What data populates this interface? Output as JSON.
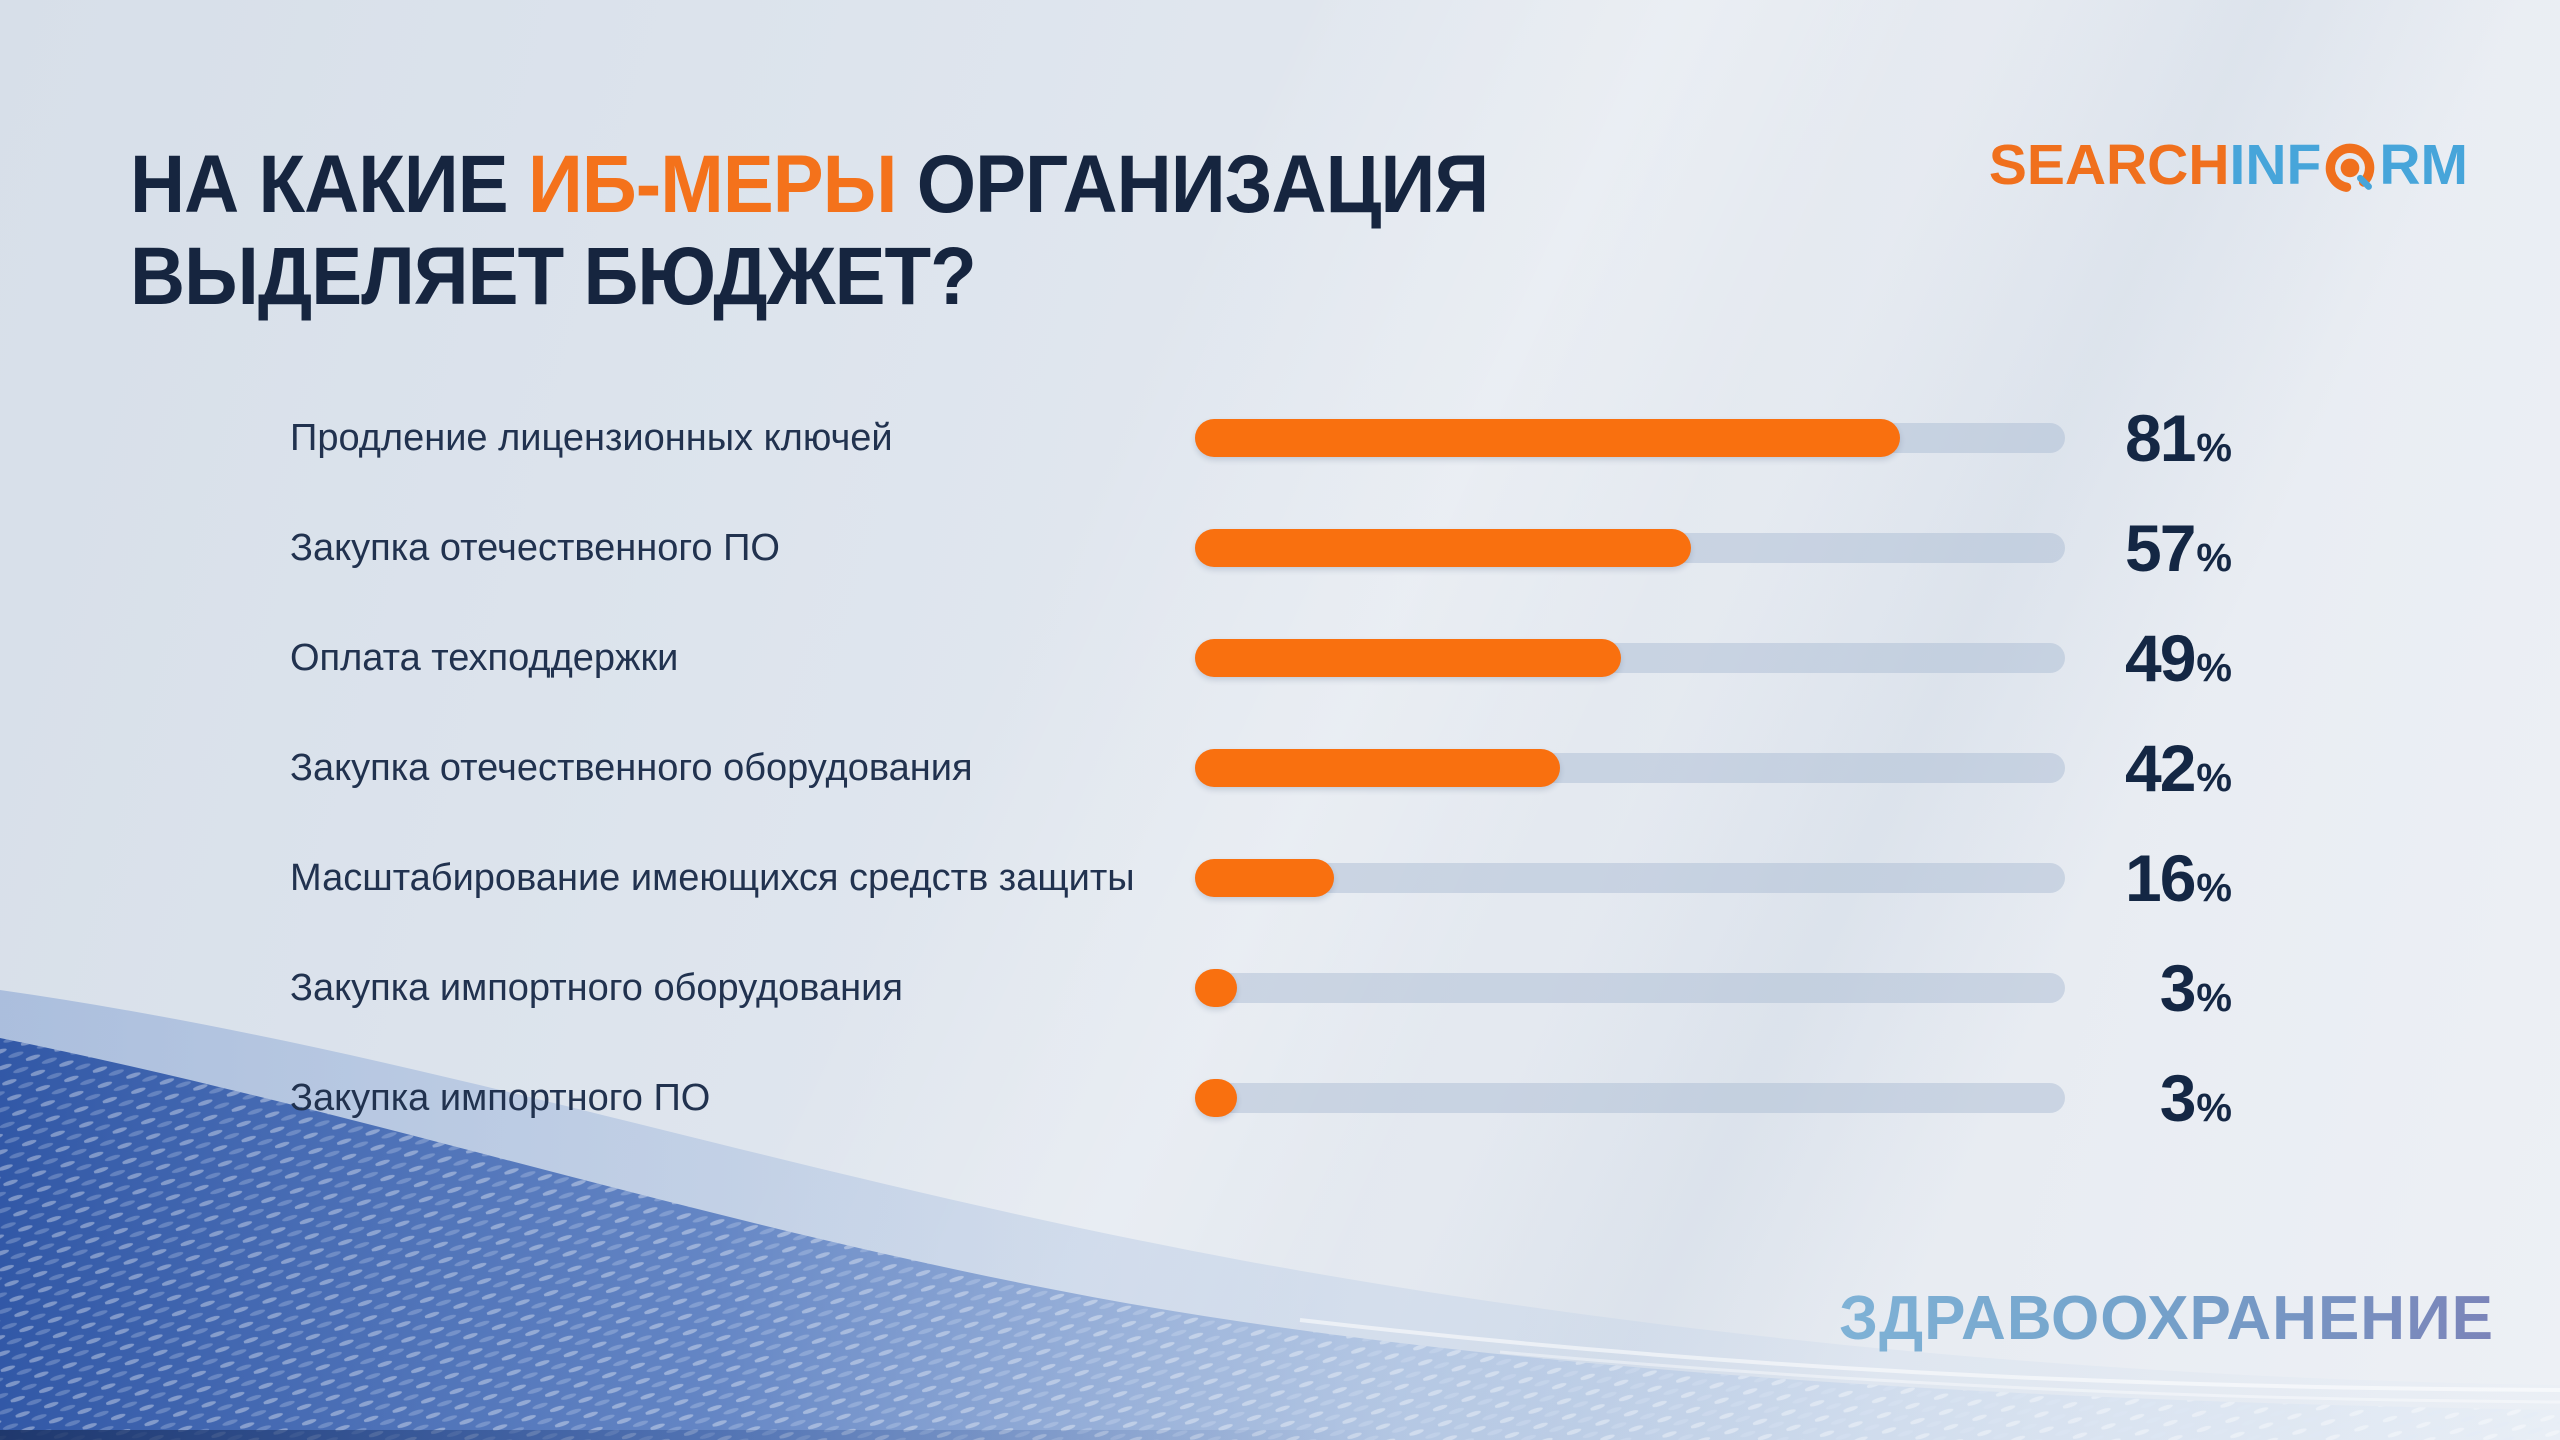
{
  "title": {
    "line1_prefix": "НА КАКИЕ",
    "line1_highlight": "ИБ-МЕРЫ",
    "line1_suffix": "ОРГАНИЗАЦИЯ",
    "line2": "ВЫДЕЛЯЕТ БЮДЖЕТ?"
  },
  "logo": {
    "part1": "SEARCH",
    "part2": "INF",
    "part3": "RM"
  },
  "footer": {
    "sector": "ЗДРАВООХРАНЕНИЕ"
  },
  "colors": {
    "accent_orange": "#F9700F",
    "title_navy": "#16253F",
    "label_navy": "#21324F",
    "value_navy": "#142744",
    "track_blue_gray": "#C3CEDD",
    "logo_orange": "#F0701D",
    "logo_blue": "#47A5DA",
    "sector_gradient_start": "#7FB2D6",
    "sector_gradient_end": "#7B84B9"
  },
  "chart_data": {
    "type": "bar",
    "orientation": "horizontal",
    "title": "НА КАКИЕ ИБ-МЕРЫ ОРГАНИЗАЦИЯ ВЫДЕЛЯЕТ БЮДЖЕТ?",
    "unit": "%",
    "xlim": [
      0,
      100
    ],
    "grid": false,
    "legend": false,
    "value_labels": "right-aligned column, bold navy",
    "categories": [
      "Продление лицензионных ключей",
      "Закупка отечественного ПО",
      "Оплата техподдержки",
      "Закупка отечественного оборудования",
      "Масштабирование имеющихся средств защиты",
      "Закупка импортного оборудования",
      "Закупка импортного ПО"
    ],
    "values": [
      81,
      57,
      49,
      42,
      16,
      3,
      3
    ]
  }
}
